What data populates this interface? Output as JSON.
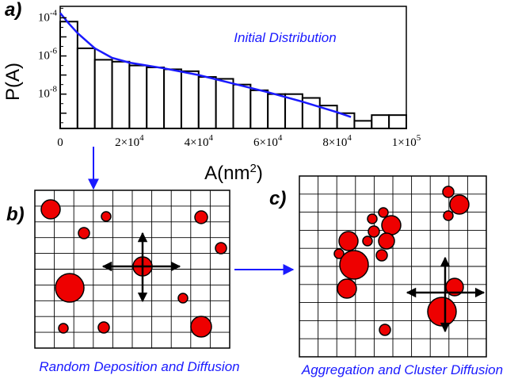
{
  "panels": {
    "a": {
      "label": "a)"
    },
    "b": {
      "label": "b)",
      "caption": "Random Deposition  and Diffusion"
    },
    "c": {
      "label": "c)",
      "caption": "Aggregation and Cluster Diffusion"
    }
  },
  "colors": {
    "particle": "#ee0000",
    "fit": "#1a1aff",
    "arrow": "#1a1aff"
  },
  "chart_data": {
    "type": "bar",
    "title": "Initial Distribution",
    "xlabel": "A(nm²)",
    "ylabel": "P(A)",
    "xlim": [
      0,
      100000
    ],
    "ylog": true,
    "ylim_log10": [
      -9.8,
      -3.4
    ],
    "bin_width": 5000,
    "bins_log10": [
      -4.2,
      -5.6,
      -6.2,
      -6.3,
      -6.5,
      -6.6,
      -6.7,
      -6.8,
      -7.1,
      -7.2,
      -7.5,
      -7.8,
      -8.0,
      -8.0,
      -8.2,
      -8.6,
      -9.0,
      -9.4,
      -9.1,
      -9.1
    ],
    "fit_curve": {
      "name": "fit",
      "x": [
        0,
        2500,
        5000,
        7500,
        10000,
        15000,
        20000,
        30000,
        40000,
        50000,
        60000,
        70000,
        80000,
        84000
      ],
      "log10_y": [
        -3.75,
        -4.3,
        -4.8,
        -5.2,
        -5.6,
        -6.1,
        -6.35,
        -6.65,
        -7.0,
        -7.45,
        -7.9,
        -8.4,
        -8.95,
        -9.2
      ]
    },
    "y_ticks": [
      {
        "exp": "-4",
        "v": -4
      },
      {
        "exp": "-6",
        "v": -6
      },
      {
        "exp": "-8",
        "v": -8
      }
    ],
    "x_ticks": [
      {
        "v": 0,
        "mant": "0",
        "exp": ""
      },
      {
        "v": 20000,
        "mant": "2×10",
        "exp": "4"
      },
      {
        "v": 40000,
        "mant": "4×10",
        "exp": "4"
      },
      {
        "v": 60000,
        "mant": "6×10",
        "exp": "4"
      },
      {
        "v": 80000,
        "mant": "8×10",
        "exp": "4"
      },
      {
        "v": 100000,
        "mant": "1×10",
        "exp": "5"
      }
    ]
  }
}
